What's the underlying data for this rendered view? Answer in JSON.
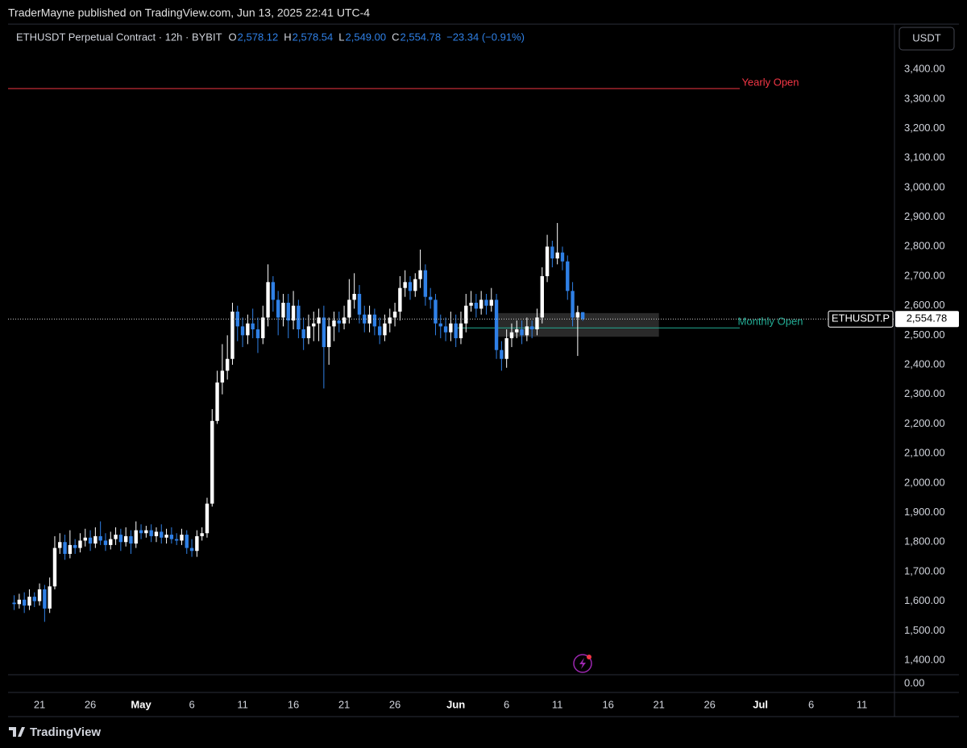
{
  "publisher": "TraderMayne published on TradingView.com, Jun 13, 2025 22:41 UTC-4",
  "header": {
    "symbol": "ETHUSDT Perpetual Contract · 12h · BYBIT",
    "legend": [
      {
        "key": "O",
        "value": "2,578.12"
      },
      {
        "key": "H",
        "value": "2,578.54"
      },
      {
        "key": "L",
        "value": "2,549.00"
      },
      {
        "key": "C",
        "value": "2,554.78"
      }
    ],
    "change": "−23.34 (−0.91%)"
  },
  "currency": "USDT",
  "brand": "TradingView",
  "chart_data": {
    "type": "candlestick",
    "up_color": "#ffffff",
    "down_color": "#2f80e6",
    "grid": false,
    "x": [
      108.5,
      109,
      109.5,
      110,
      110.5,
      111,
      111.5,
      112,
      112.5,
      113,
      113.5,
      114,
      114.5,
      115,
      115.5,
      116,
      116.5,
      117,
      117.5,
      118,
      118.5,
      119,
      119.5,
      120,
      120.5,
      121,
      121.5,
      122,
      122.5,
      123,
      123.5,
      124,
      124.5,
      125,
      125.5,
      126,
      126.5,
      127,
      127.5,
      128,
      128.5,
      129,
      129.5,
      130,
      130.5,
      131,
      131.5,
      132,
      132.5,
      133,
      133.5,
      134,
      134.5,
      135,
      135.5,
      136,
      136.5,
      137,
      137.5,
      138,
      138.5,
      139,
      139.5,
      140,
      140.5,
      141,
      141.5,
      142,
      142.5,
      143,
      143.5,
      144,
      144.5,
      145,
      145.5,
      146,
      146.5,
      147,
      147.5,
      148,
      148.5,
      149,
      149.5,
      150,
      150.5,
      151,
      151.5,
      152,
      152.5,
      153,
      153.5,
      154,
      154.5,
      155,
      155.5,
      156,
      156.5,
      157,
      157.5,
      158,
      158.5,
      159,
      159.5,
      160,
      160.5,
      161,
      161.5,
      162,
      162.5,
      163,
      163.5,
      164,
      164.5
    ],
    "open": [
      1595,
      1590,
      1605,
      1585,
      1615,
      1600,
      1640,
      1575,
      1650,
      1780,
      1800,
      1760,
      1790,
      1780,
      1805,
      1815,
      1795,
      1820,
      1805,
      1790,
      1810,
      1825,
      1800,
      1820,
      1795,
      1840,
      1830,
      1840,
      1820,
      1835,
      1815,
      1825,
      1810,
      1805,
      1825,
      1780,
      1770,
      1820,
      1830,
      1930,
      2210,
      2340,
      2380,
      2420,
      2580,
      2530,
      2500,
      2540,
      2520,
      2490,
      2560,
      2680,
      2620,
      2560,
      2610,
      2550,
      2600,
      2520,
      2490,
      2530,
      2540,
      2560,
      2460,
      2530,
      2550,
      2540,
      2560,
      2620,
      2640,
      2570,
      2540,
      2570,
      2530,
      2500,
      2540,
      2560,
      2580,
      2660,
      2680,
      2650,
      2690,
      2720,
      2630,
      2620,
      2540,
      2530,
      2510,
      2540,
      2490,
      2540,
      2600,
      2610,
      2590,
      2620,
      2600,
      2620,
      2450,
      2420,
      2490,
      2510,
      2520,
      2500,
      2530,
      2520,
      2560,
      2700,
      2800,
      2760,
      2780,
      2750,
      2650,
      2560,
      2578.12
    ],
    "high": [
      1620,
      1625,
      1630,
      1640,
      1630,
      1660,
      1655,
      1680,
      1820,
      1830,
      1825,
      1840,
      1810,
      1830,
      1845,
      1840,
      1850,
      1870,
      1830,
      1835,
      1850,
      1845,
      1850,
      1840,
      1870,
      1860,
      1855,
      1860,
      1850,
      1860,
      1845,
      1850,
      1830,
      1845,
      1840,
      1810,
      1840,
      1850,
      1950,
      2250,
      2380,
      2470,
      2500,
      2610,
      2600,
      2560,
      2570,
      2590,
      2560,
      2600,
      2740,
      2700,
      2650,
      2640,
      2640,
      2650,
      2620,
      2560,
      2570,
      2580,
      2590,
      2600,
      2560,
      2580,
      2580,
      2600,
      2690,
      2710,
      2670,
      2600,
      2600,
      2590,
      2560,
      2570,
      2590,
      2610,
      2700,
      2720,
      2700,
      2710,
      2790,
      2740,
      2660,
      2640,
      2570,
      2560,
      2580,
      2570,
      2580,
      2640,
      2650,
      2640,
      2650,
      2640,
      2660,
      2640,
      2480,
      2520,
      2540,
      2550,
      2550,
      2560,
      2550,
      2590,
      2730,
      2840,
      2820,
      2880,
      2800,
      2770,
      2680,
      2600,
      2578.54
    ],
    "low": [
      1570,
      1575,
      1560,
      1570,
      1580,
      1585,
      1530,
      1560,
      1640,
      1760,
      1740,
      1745,
      1760,
      1765,
      1785,
      1770,
      1780,
      1790,
      1770,
      1775,
      1790,
      1770,
      1785,
      1760,
      1780,
      1810,
      1815,
      1800,
      1800,
      1795,
      1795,
      1795,
      1790,
      1790,
      1760,
      1750,
      1750,
      1805,
      1815,
      1920,
      2200,
      2300,
      2350,
      2400,
      2480,
      2460,
      2470,
      2490,
      2440,
      2470,
      2530,
      2580,
      2500,
      2530,
      2490,
      2520,
      2490,
      2450,
      2470,
      2480,
      2480,
      2320,
      2400,
      2480,
      2510,
      2520,
      2540,
      2590,
      2540,
      2510,
      2510,
      2500,
      2470,
      2480,
      2510,
      2530,
      2550,
      2630,
      2620,
      2630,
      2660,
      2600,
      2590,
      2500,
      2490,
      2480,
      2480,
      2460,
      2470,
      2510,
      2580,
      2560,
      2570,
      2570,
      2580,
      2420,
      2380,
      2390,
      2460,
      2490,
      2470,
      2480,
      2490,
      2500,
      2540,
      2680,
      2730,
      2740,
      2720,
      2620,
      2530,
      2430,
      2549
    ],
    "close": [
      1590,
      1605,
      1585,
      1615,
      1600,
      1640,
      1575,
      1650,
      1780,
      1800,
      1760,
      1790,
      1780,
      1805,
      1815,
      1795,
      1820,
      1805,
      1790,
      1810,
      1825,
      1800,
      1820,
      1795,
      1840,
      1830,
      1840,
      1820,
      1835,
      1815,
      1825,
      1810,
      1805,
      1825,
      1780,
      1770,
      1820,
      1830,
      1930,
      2210,
      2340,
      2380,
      2420,
      2580,
      2530,
      2500,
      2540,
      2520,
      2490,
      2560,
      2680,
      2620,
      2560,
      2610,
      2550,
      2600,
      2520,
      2490,
      2530,
      2540,
      2560,
      2460,
      2530,
      2550,
      2540,
      2560,
      2620,
      2640,
      2570,
      2540,
      2570,
      2530,
      2500,
      2540,
      2560,
      2580,
      2660,
      2680,
      2650,
      2690,
      2720,
      2630,
      2620,
      2540,
      2530,
      2510,
      2540,
      2490,
      2540,
      2600,
      2610,
      2590,
      2620,
      2600,
      2620,
      2450,
      2420,
      2490,
      2510,
      2520,
      2500,
      2530,
      2520,
      2560,
      2700,
      2800,
      2760,
      2780,
      2750,
      2650,
      2560,
      2578.12,
      2554.78
    ],
    "xlim": [
      107.9,
      195.2
    ],
    "xticks": [
      {
        "value": 111,
        "label": "21"
      },
      {
        "value": 116,
        "label": "26"
      },
      {
        "value": 121,
        "label": "May"
      },
      {
        "value": 126,
        "label": "6"
      },
      {
        "value": 131,
        "label": "11"
      },
      {
        "value": 136,
        "label": "16"
      },
      {
        "value": 141,
        "label": "21"
      },
      {
        "value": 146,
        "label": "26"
      },
      {
        "value": 152,
        "label": "Jun"
      },
      {
        "value": 157,
        "label": "6"
      },
      {
        "value": 162,
        "label": "11"
      },
      {
        "value": 167,
        "label": "16"
      },
      {
        "value": 172,
        "label": "21"
      },
      {
        "value": 177,
        "label": "26"
      },
      {
        "value": 182,
        "label": "Jul"
      },
      {
        "value": 187,
        "label": "6"
      },
      {
        "value": 192,
        "label": "11"
      }
    ],
    "ylim": [
      1351,
      3553
    ],
    "yticks": [
      {
        "value": 1400,
        "label": "1,400.00"
      },
      {
        "value": 1500,
        "label": "1,500.00"
      },
      {
        "value": 1600,
        "label": "1,600.00"
      },
      {
        "value": 1700,
        "label": "1,700.00"
      },
      {
        "value": 1800,
        "label": "1,800.00"
      },
      {
        "value": 1900,
        "label": "1,900.00"
      },
      {
        "value": 2000,
        "label": "2,000.00"
      },
      {
        "value": 2100,
        "label": "2,100.00"
      },
      {
        "value": 2200,
        "label": "2,200.00"
      },
      {
        "value": 2300,
        "label": "2,300.00"
      },
      {
        "value": 2400,
        "label": "2,400.00"
      },
      {
        "value": 2500,
        "label": "2,500.00"
      },
      {
        "value": 2600,
        "label": "2,600.00"
      },
      {
        "value": 2700,
        "label": "2,700.00"
      },
      {
        "value": 2800,
        "label": "2,800.00"
      },
      {
        "value": 2900,
        "label": "2,900.00"
      },
      {
        "value": 3000,
        "label": "3,000.00"
      },
      {
        "value": 3100,
        "label": "3,100.00"
      },
      {
        "value": 3200,
        "label": "3,200.00"
      },
      {
        "value": 3300,
        "label": "3,300.00"
      },
      {
        "value": 3400,
        "label": "3,400.00"
      }
    ],
    "y2ticks": [
      {
        "value": 0,
        "label": "0.00"
      }
    ],
    "levels": [
      {
        "label": "Yearly Open",
        "value": 3335,
        "x": 1,
        "color": "#f23645"
      },
      {
        "label": "Monthly Open",
        "value": 2525,
        "x": 152,
        "color": "#22ab94"
      }
    ],
    "zones": [
      {
        "x": [
          155.9,
          172
        ],
        "y": [
          2495,
          2575
        ],
        "color": "#777777"
      }
    ],
    "last_price": {
      "name": "ETHUSDT.P",
      "value": 2554.78,
      "label": "2,554.78"
    }
  }
}
